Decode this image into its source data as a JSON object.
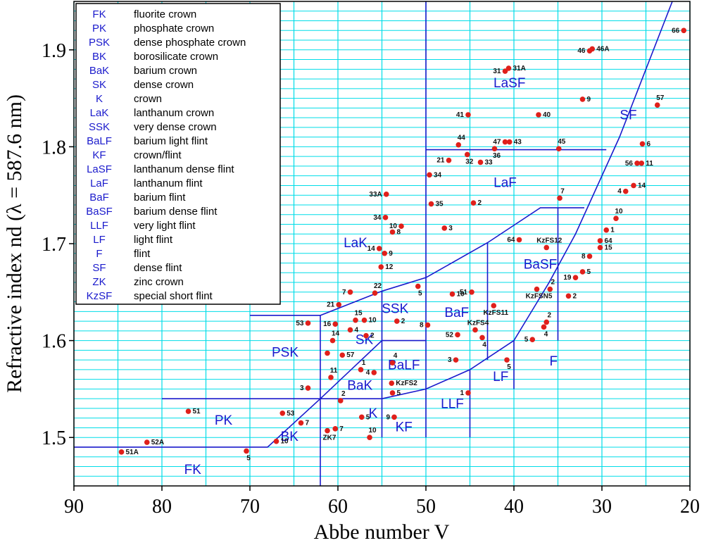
{
  "chart_data": {
    "type": "scatter",
    "xlabel": "Abbe number V",
    "ylabel": "Refractive index nd  (λ = 587.6 nm)",
    "xlim": [
      90,
      20
    ],
    "ylim": [
      1.45,
      1.95
    ],
    "xticks": [
      90,
      80,
      70,
      60,
      50,
      40,
      30,
      20
    ],
    "yticks": [
      1.5,
      1.6,
      1.7,
      1.8,
      1.9
    ],
    "x_grid": [
      90,
      85,
      80,
      75,
      70,
      65,
      60,
      55,
      50,
      45,
      40,
      35,
      30,
      25,
      20
    ],
    "y_grid": [
      1.45,
      1.46,
      1.47,
      1.48,
      1.49,
      1.5,
      1.51,
      1.52,
      1.53,
      1.54,
      1.55,
      1.56,
      1.57,
      1.58,
      1.59,
      1.6,
      1.61,
      1.62,
      1.63,
      1.64,
      1.65,
      1.66,
      1.67,
      1.68,
      1.69,
      1.7,
      1.71,
      1.72,
      1.73,
      1.74,
      1.75,
      1.76,
      1.77,
      1.78,
      1.79,
      1.8,
      1.81,
      1.82,
      1.83,
      1.84,
      1.85,
      1.86,
      1.87,
      1.88,
      1.89,
      1.9,
      1.91,
      1.92,
      1.93,
      1.94,
      1.95
    ],
    "grid_color": "#00dde8",
    "point_color": "#e0201b",
    "boundary_color": "#1a1acc",
    "x": [
      84.6,
      81.7,
      77.0,
      70.4,
      67.0,
      66.3,
      64.2,
      63.4,
      63.4,
      61.2,
      60.3,
      60.8,
      61.2,
      60.6,
      59.5,
      60.3,
      59.9,
      58.6,
      58.0,
      57.0,
      58.6,
      56.8,
      55.8,
      57.4,
      55.9,
      59.7,
      57.3,
      56.4,
      55.1,
      55.3,
      54.7,
      53.8,
      54.6,
      54.5,
      52.8,
      50.9,
      53.3,
      53.8,
      53.9,
      53.8,
      53.6,
      49.8,
      49.6,
      49.4,
      47.9,
      47.0,
      46.6,
      46.4,
      46.3,
      47.4,
      45.3,
      43.8,
      44.6,
      44.8,
      44.4,
      43.6,
      45.2,
      45.2,
      42.3,
      42.2,
      41.0,
      40.5,
      41.0,
      40.6,
      37.9,
      40.8,
      37.2,
      39.4,
      35.9,
      37.4,
      34.9,
      34.8,
      36.3,
      36.3,
      36.6,
      33.8,
      33.0,
      32.2,
      31.4,
      32.2,
      31.4,
      31.1,
      30.2,
      30.2,
      29.5,
      28.4,
      27.3,
      26.4,
      26.0,
      25.5,
      25.4,
      23.7,
      20.7
    ],
    "values": [
      1.485,
      1.495,
      1.527,
      1.486,
      1.496,
      1.525,
      1.515,
      1.551,
      1.618,
      1.507,
      1.509,
      1.562,
      1.587,
      1.6,
      1.585,
      1.617,
      1.637,
      1.65,
      1.621,
      1.621,
      1.611,
      1.605,
      1.649,
      1.57,
      1.567,
      1.538,
      1.521,
      1.5,
      1.676,
      1.695,
      1.69,
      1.712,
      1.727,
      1.751,
      1.718,
      1.656,
      1.62,
      1.546,
      1.556,
      1.577,
      1.521,
      1.616,
      1.771,
      1.741,
      1.716,
      1.648,
      1.58,
      1.606,
      1.802,
      1.786,
      1.792,
      1.784,
      1.742,
      1.65,
      1.611,
      1.603,
      1.546,
      1.833,
      1.636,
      1.798,
      1.805,
      1.805,
      1.878,
      1.881,
      1.601,
      1.58,
      1.833,
      1.704,
      1.653,
      1.653,
      1.798,
      1.747,
      1.696,
      1.619,
      1.614,
      1.646,
      1.665,
      1.671,
      1.687,
      1.849,
      1.899,
      1.901,
      1.703,
      1.696,
      1.714,
      1.726,
      1.754,
      1.76,
      1.783,
      1.783,
      1.803,
      1.843,
      1.92
    ],
    "point_labels": [
      "51A",
      "52A",
      "51",
      "5",
      "10",
      "53",
      "7",
      "3",
      "53",
      "ZK7",
      "7",
      "11",
      null,
      "14",
      "57",
      "16",
      "21",
      "7",
      "15",
      "10",
      "4",
      "2",
      "22",
      "1",
      "4",
      "2",
      "5",
      "10",
      "12",
      "14",
      "9",
      "8",
      "34",
      "33A",
      "10",
      "5",
      "2",
      "5",
      "KzFS2",
      "4",
      "9",
      "8",
      "34",
      "35",
      "3",
      "10",
      "3",
      "52",
      "44",
      "21",
      "32",
      "33",
      "2",
      "51",
      "KzFS4",
      "4",
      "1",
      "41",
      "KzFS11",
      "36",
      "47",
      "43",
      "31",
      "31A",
      "5",
      "5",
      "40",
      "64",
      "2",
      "KzFSN5",
      "45",
      "7",
      "KzFS12",
      "2",
      "4",
      "2",
      "19",
      "5",
      "8",
      "9",
      "46",
      "46A",
      "64",
      "15",
      "1",
      "10",
      "4",
      "14",
      "56",
      "11",
      "6",
      "57",
      "66"
    ],
    "region_boundaries": [
      [
        [
          90,
          1.49
        ],
        [
          68,
          1.49
        ],
        [
          62,
          1.54
        ],
        [
          55,
          1.6
        ],
        [
          50,
          1.6
        ]
      ],
      [
        [
          80,
          1.54
        ],
        [
          55,
          1.54
        ],
        [
          50,
          1.55
        ],
        [
          45,
          1.57
        ],
        [
          40,
          1.6
        ],
        [
          36,
          1.66
        ],
        [
          33,
          1.71
        ],
        [
          28,
          1.81
        ],
        [
          22,
          1.95
        ]
      ],
      [
        [
          70,
          1.626
        ],
        [
          62,
          1.626
        ],
        [
          62,
          1.45
        ]
      ],
      [
        [
          62,
          1.626
        ],
        [
          55,
          1.651
        ],
        [
          50,
          1.665
        ],
        [
          43,
          1.701
        ],
        [
          37,
          1.737
        ],
        [
          32,
          1.737
        ]
      ],
      [
        [
          55,
          1.5
        ],
        [
          55,
          1.651
        ]
      ],
      [
        [
          50,
          1.5
        ],
        [
          50,
          1.95
        ]
      ],
      [
        [
          45,
          1.5
        ],
        [
          45,
          1.57
        ]
      ],
      [
        [
          40,
          1.55
        ],
        [
          40,
          1.6
        ]
      ],
      [
        [
          43,
          1.58
        ],
        [
          43,
          1.701
        ]
      ],
      [
        [
          35,
          1.6
        ],
        [
          35,
          1.737
        ]
      ],
      [
        [
          50,
          1.797
        ],
        [
          29.5,
          1.797
        ]
      ]
    ],
    "regions": [
      "FK",
      "PK",
      "PSK",
      "BK",
      "BaK",
      "SK",
      "K",
      "LaK",
      "SSK",
      "BaLF",
      "KF",
      "LaSF",
      "LaF",
      "BaF",
      "BaSF",
      "LLF",
      "LF",
      "F",
      "SF"
    ],
    "legend": [
      {
        "code": "FK",
        "name": "fluorite crown"
      },
      {
        "code": "PK",
        "name": "phosphate crown"
      },
      {
        "code": "PSK",
        "name": "dense phosphate crown"
      },
      {
        "code": "BK",
        "name": "borosilicate crown"
      },
      {
        "code": "BaK",
        "name": "barium crown"
      },
      {
        "code": "SK",
        "name": "dense crown"
      },
      {
        "code": "K",
        "name": "crown"
      },
      {
        "code": "LaK",
        "name": "lanthanum crown"
      },
      {
        "code": "SSK",
        "name": "very dense crown"
      },
      {
        "code": "BaLF",
        "name": "barium light flint"
      },
      {
        "code": "KF",
        "name": "crown/flint"
      },
      {
        "code": "LaSF",
        "name": "lanthanum dense flint"
      },
      {
        "code": "LaF",
        "name": "lanthanum flint"
      },
      {
        "code": "BaF",
        "name": "barium flint"
      },
      {
        "code": "BaSF",
        "name": "barium dense flint"
      },
      {
        "code": "LLF",
        "name": "very light flint"
      },
      {
        "code": "LF",
        "name": "light flint"
      },
      {
        "code": "F",
        "name": "flint"
      },
      {
        "code": "SF",
        "name": "dense flint"
      },
      {
        "code": "ZK",
        "name": "zinc crown"
      },
      {
        "code": "KzSF",
        "name": "special short flint"
      }
    ]
  }
}
